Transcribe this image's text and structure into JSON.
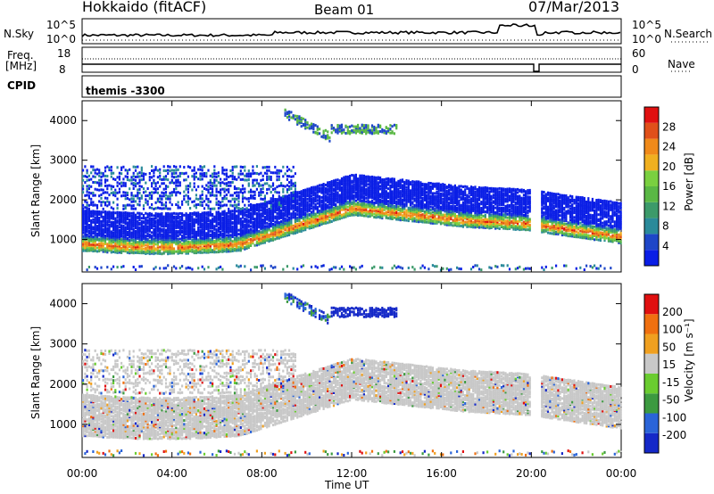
{
  "header": {
    "site": "Hokkaido (fitACF)",
    "beam": "Beam 01",
    "date": "07/Mar/2013"
  },
  "top_panel": {
    "nsky_label": "N.Sky",
    "nsky_ticks": [
      "10^5",
      "10^0"
    ],
    "nsearch_label": "N.Search",
    "nsearch_ticks": [
      "10^5",
      "10^0"
    ],
    "freq_label_1": "Freq.",
    "freq_label_2": "[MHz]",
    "freq_ticks": [
      "18",
      "8"
    ],
    "nave_label": "Nave",
    "nave_ticks": [
      "60",
      "0"
    ],
    "cpid_label": "CPID",
    "cpid_value": "themis -3300"
  },
  "chart_data": [
    {
      "type": "heatmap",
      "name": "power",
      "ylabel": "Slant Range [km]",
      "xlabel": "",
      "x_ticks": [
        "00:00",
        "04:00",
        "08:00",
        "12:00",
        "16:00",
        "20:00",
        "00:00"
      ],
      "y_ticks": [
        "1000",
        "2000",
        "3000",
        "4000"
      ],
      "xlim_hours": [
        0,
        24
      ],
      "ylim_km": [
        180,
        4500
      ],
      "colorbar_label": "Power [dB]",
      "colorbar_ticks": [
        "4",
        "8",
        "12",
        "16",
        "20",
        "24",
        "28"
      ],
      "colorbar_colors": [
        "#0a1ee6",
        "#1e46c8",
        "#2a8a9a",
        "#3c9a6a",
        "#5ab845",
        "#7ad040",
        "#f0b020",
        "#f08a1a",
        "#e0501a",
        "#e01010"
      ],
      "range_of_scatter": {
        "main_band_km": [
          [
            0,
            1000
          ],
          [
            4,
            930
          ],
          [
            7,
            980
          ],
          [
            9,
            1300
          ],
          [
            11,
            1700
          ],
          [
            13,
            1900
          ],
          [
            15,
            1800
          ],
          [
            17,
            1600
          ],
          [
            19,
            1500
          ],
          [
            20,
            1500
          ],
          [
            21,
            1300
          ],
          [
            24,
            1100
          ]
        ],
        "upper_band_km": [
          [
            0,
            2200
          ],
          [
            4,
            2100
          ],
          [
            8,
            2100
          ],
          [
            10,
            2200
          ],
          [
            12,
            2300
          ],
          [
            14,
            2100
          ],
          [
            17,
            2000
          ]
        ]
      }
    },
    {
      "type": "heatmap",
      "name": "velocity",
      "ylabel": "Slant Range [km]",
      "xlabel": "Time UT",
      "x_ticks": [
        "00:00",
        "04:00",
        "08:00",
        "12:00",
        "16:00",
        "20:00",
        "00:00"
      ],
      "y_ticks": [
        "1000",
        "2000",
        "3000",
        "4000"
      ],
      "xlim_hours": [
        0,
        24
      ],
      "ylim_km": [
        180,
        4500
      ],
      "colorbar_label": "Velocity [m s⁻¹]",
      "colorbar_ticks": [
        "200",
        "100",
        "50",
        "15",
        "-15",
        "-50",
        "-100",
        "-200"
      ],
      "colorbar_colors": [
        "#1428c8",
        "#2a64d8",
        "#3c9a40",
        "#6acc30",
        "#c8c8c8",
        "#f0a020",
        "#f07010",
        "#e01010"
      ]
    }
  ]
}
